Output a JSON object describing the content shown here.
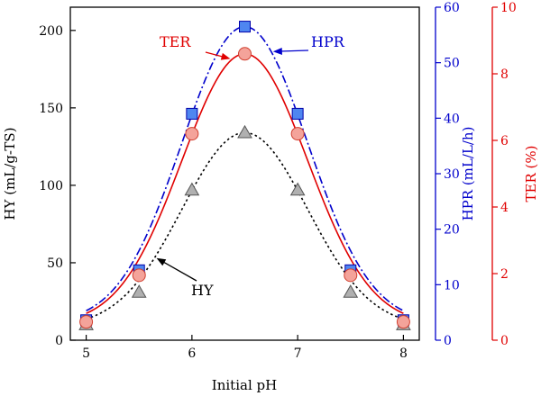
{
  "chart_data": {
    "type": "line",
    "xlabel": "Initial pH",
    "x_ticks": [
      "5",
      "6",
      "7",
      "8"
    ],
    "xlim": [
      4.85,
      8.15
    ],
    "axes": {
      "y_left": {
        "label": "HY (mL/g-TS)",
        "ylim": [
          0,
          215
        ],
        "ticks": [
          "0",
          "50",
          "100",
          "150",
          "200"
        ],
        "color": "#000000"
      },
      "y_right_1": {
        "label": "HPR (mL/L/h)",
        "ylim": [
          0,
          60
        ],
        "ticks": [
          "0",
          "10",
          "20",
          "30",
          "40",
          "50",
          "60"
        ],
        "color": "#0000cc"
      },
      "y_right_2": {
        "label": "TER (%)",
        "ylim": [
          0,
          10
        ],
        "ticks": [
          "0",
          "2",
          "4",
          "6",
          "8",
          "10"
        ],
        "color": "#e00000"
      }
    },
    "series": [
      {
        "name": "HY",
        "axis": "y_left",
        "marker": "triangle",
        "line_style": "dotted",
        "line_color": "#000000",
        "marker_fill": "#b0b0b0",
        "marker_stroke": "#555555",
        "points": [
          [
            5,
            10
          ],
          [
            5.5,
            31
          ],
          [
            6,
            97
          ],
          [
            6.5,
            134
          ],
          [
            7,
            97
          ],
          [
            7.5,
            31
          ],
          [
            8,
            10
          ]
        ]
      },
      {
        "name": "HPR",
        "axis": "y_right_1",
        "marker": "square",
        "line_style": "dashdot",
        "line_color": "#0000cc",
        "marker_fill": "#4f86f0",
        "marker_stroke": "#0000aa",
        "points": [
          [
            5,
            3.6
          ],
          [
            5.5,
            12.6
          ],
          [
            6,
            40.8
          ],
          [
            6.5,
            56.5
          ],
          [
            7,
            40.8
          ],
          [
            7.5,
            12.6
          ],
          [
            8,
            3.6
          ]
        ]
      },
      {
        "name": "TER",
        "axis": "y_right_2",
        "marker": "circle",
        "line_style": "solid",
        "line_color": "#e00000",
        "marker_fill": "#f4a39a",
        "marker_stroke": "#d04030",
        "points": [
          [
            5,
            0.55
          ],
          [
            5.5,
            1.95
          ],
          [
            6,
            6.2
          ],
          [
            6.5,
            8.6
          ],
          [
            7,
            6.2
          ],
          [
            7.5,
            1.95
          ],
          [
            8,
            0.55
          ]
        ]
      }
    ],
    "annotations": [
      {
        "text": "TER",
        "series": "TER",
        "color": "#e00000"
      },
      {
        "text": "HPR",
        "series": "HPR",
        "color": "#0000cc"
      },
      {
        "text": "HY",
        "series": "HY",
        "color": "#000000"
      }
    ],
    "grid": false,
    "legend": "none"
  }
}
